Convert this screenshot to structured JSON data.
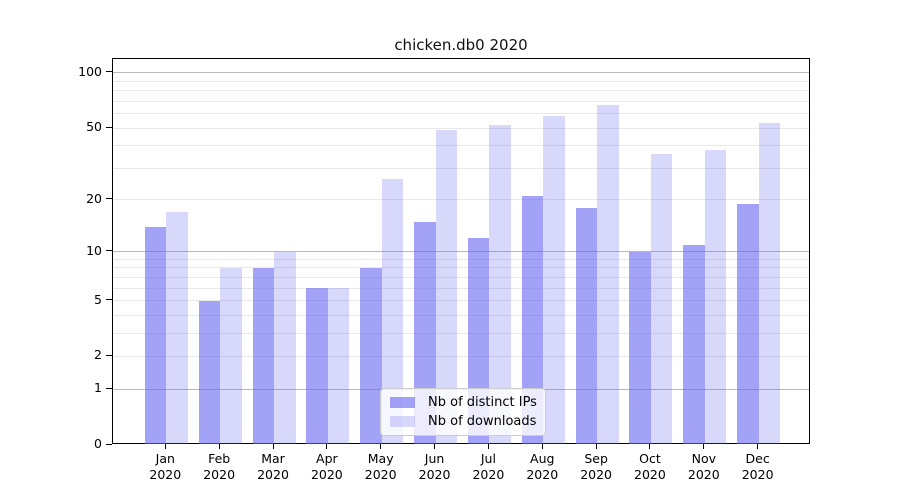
{
  "chart_data": {
    "type": "bar",
    "title": "chicken.db0 2020",
    "categories": [
      "Jan",
      "Feb",
      "Mar",
      "Apr",
      "May",
      "Jun",
      "Jul",
      "Aug",
      "Sep",
      "Oct",
      "Nov",
      "Dec"
    ],
    "category_year": "2020",
    "series": [
      {
        "name": "Nb of distinct IPs",
        "values": [
          14,
          5,
          8,
          6,
          8,
          15,
          12,
          21,
          18,
          10,
          11,
          19
        ],
        "color": "#6464F0",
        "alpha": 0.6
      },
      {
        "name": "Nb of downloads",
        "values": [
          17,
          8,
          10,
          6,
          26,
          49,
          52,
          58,
          67,
          36,
          38,
          53
        ],
        "color": "#6464F0",
        "alpha": 0.25
      }
    ],
    "xlabel": "",
    "ylabel": "",
    "y_axis": {
      "scale": "log10(1+x)",
      "tick_labels": [
        0,
        1,
        2,
        5,
        10,
        20,
        50,
        100
      ],
      "major_gridlines": [
        1,
        10,
        100
      ],
      "minor_gridlines": [
        2,
        3,
        4,
        5,
        6,
        7,
        8,
        9,
        20,
        30,
        40,
        50,
        60,
        70,
        80,
        90
      ],
      "ylim": [
        0,
        115
      ]
    },
    "grid": "on",
    "legend_position": "lower center",
    "colors": {
      "major_grid": "#b9b9b9",
      "minor_grid": "#e8e8e8",
      "axis": "#000000",
      "text": "#111111",
      "background": "#ffffff"
    }
  }
}
